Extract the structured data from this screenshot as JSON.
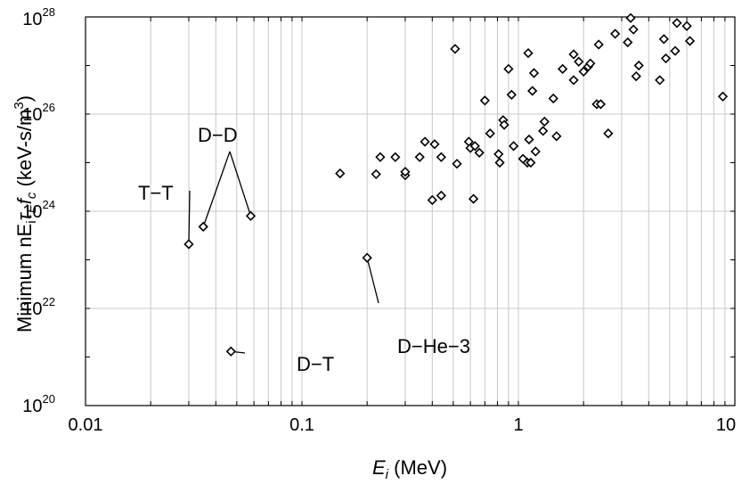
{
  "chart_data": {
    "type": "scatter",
    "xlabel": {
      "italic_base": "E",
      "italic_sub": "i",
      "rest": " (MeV)"
    },
    "ylabel": {
      "prefix": "Minimum nE",
      "sub_i": "i",
      "tau": "τ",
      "sub_E": "E",
      "f": "f",
      "sub_c": "c",
      "suffix": " (keV-s/m",
      "sup": "3",
      "close": ")"
    },
    "xscale": "log",
    "yscale": "log",
    "xlim": [
      0.01,
      10
    ],
    "ylim": [
      1e+20,
      1e+28
    ],
    "x_ticks": [
      {
        "value": 0.01,
        "label": "0.01"
      },
      {
        "value": 0.1,
        "label": "0.1"
      },
      {
        "value": 1,
        "label": "1"
      },
      {
        "value": 10,
        "label": "10"
      }
    ],
    "y_ticks": [
      {
        "value": 1e+20,
        "base": "10",
        "exp": "20"
      },
      {
        "value": 1e+22,
        "base": "10",
        "exp": "22"
      },
      {
        "value": 1e+24,
        "base": "10",
        "exp": "24"
      },
      {
        "value": 1e+26,
        "base": "10",
        "exp": "26"
      },
      {
        "value": 1e+28,
        "base": "10",
        "exp": "28"
      }
    ],
    "grid": true,
    "marker": "diamond",
    "points": [
      [
        0.03,
        2.1e+23
      ],
      [
        0.035,
        4.8e+23
      ],
      [
        0.058,
        8e+23
      ],
      [
        0.047,
        1.3e+21
      ],
      [
        0.2,
        1.1e+23
      ],
      [
        0.15,
        6e+24
      ],
      [
        0.22,
        5.8e+24
      ],
      [
        0.23,
        1.3e+25
      ],
      [
        0.27,
        1.3e+25
      ],
      [
        0.3,
        5.5e+24
      ],
      [
        0.3,
        6.5e+24
      ],
      [
        0.35,
        1.3e+25
      ],
      [
        0.37,
        2.7e+25
      ],
      [
        0.41,
        2.4e+25
      ],
      [
        0.44,
        1.3e+25
      ],
      [
        0.4,
        1.7e+24
      ],
      [
        0.44,
        2.1e+24
      ],
      [
        0.51,
        2.2e+27
      ],
      [
        0.52,
        9.5e+24
      ],
      [
        0.59,
        2.7e+25
      ],
      [
        0.6,
        2e+25
      ],
      [
        0.63,
        2.2e+25
      ],
      [
        0.66,
        1.6e+25
      ],
      [
        0.62,
        1.8e+24
      ],
      [
        0.7,
        1.9e+26
      ],
      [
        0.74,
        4e+25
      ],
      [
        0.81,
        1.5e+25
      ],
      [
        0.82,
        1e+25
      ],
      [
        0.85,
        7.5e+25
      ],
      [
        0.86,
        6e+25
      ],
      [
        0.9,
        8.5e+26
      ],
      [
        0.93,
        2.5e+26
      ],
      [
        0.95,
        2.2e+25
      ],
      [
        1.05,
        1.2e+25
      ],
      [
        1.1,
        1e+25
      ],
      [
        1.11,
        1.8e+27
      ],
      [
        1.12,
        3e+25
      ],
      [
        1.14,
        1e+25
      ],
      [
        1.16,
        3e+26
      ],
      [
        1.18,
        7e+26
      ],
      [
        1.2,
        1.7e+25
      ],
      [
        1.3,
        4.5e+25
      ],
      [
        1.32,
        7e+25
      ],
      [
        1.45,
        2.1e+26
      ],
      [
        1.5,
        3.5e+25
      ],
      [
        1.6,
        8.5e+26
      ],
      [
        1.8,
        1.7e+27
      ],
      [
        1.8,
        5e+26
      ],
      [
        1.9,
        1.2e+27
      ],
      [
        2.0,
        7.5e+26
      ],
      [
        2.1,
        9.5e+26
      ],
      [
        2.15,
        1.1e+27
      ],
      [
        2.3,
        1.6e+26
      ],
      [
        2.35,
        2.7e+27
      ],
      [
        2.4,
        1.6e+26
      ],
      [
        2.6,
        4e+25
      ],
      [
        2.8,
        4.5e+27
      ],
      [
        3.2,
        3e+27
      ],
      [
        3.3,
        9.5e+27
      ],
      [
        3.4,
        5.5e+27
      ],
      [
        3.5,
        6e+26
      ],
      [
        3.6,
        1e+27
      ],
      [
        4.5,
        5e+26
      ],
      [
        4.7,
        3.5e+27
      ],
      [
        4.8,
        1.4e+27
      ],
      [
        5.3,
        2e+27
      ],
      [
        5.4,
        7.5e+27
      ],
      [
        6.0,
        6.5e+27
      ],
      [
        6.2,
        3.2e+27
      ],
      [
        8.8,
        2.3e+26
      ]
    ],
    "annotations": [
      {
        "text": "T−T",
        "points": [
          [
            0.03,
            2.1e+23
          ]
        ]
      },
      {
        "text": "D−D",
        "points": [
          [
            0.035,
            4.8e+23
          ],
          [
            0.058,
            8e+23
          ]
        ]
      },
      {
        "text": "D−T",
        "points": [
          [
            0.047,
            1.3e+21
          ]
        ]
      },
      {
        "text": "D−He−3",
        "points": [
          [
            0.2,
            1.1e+23
          ]
        ]
      }
    ]
  }
}
